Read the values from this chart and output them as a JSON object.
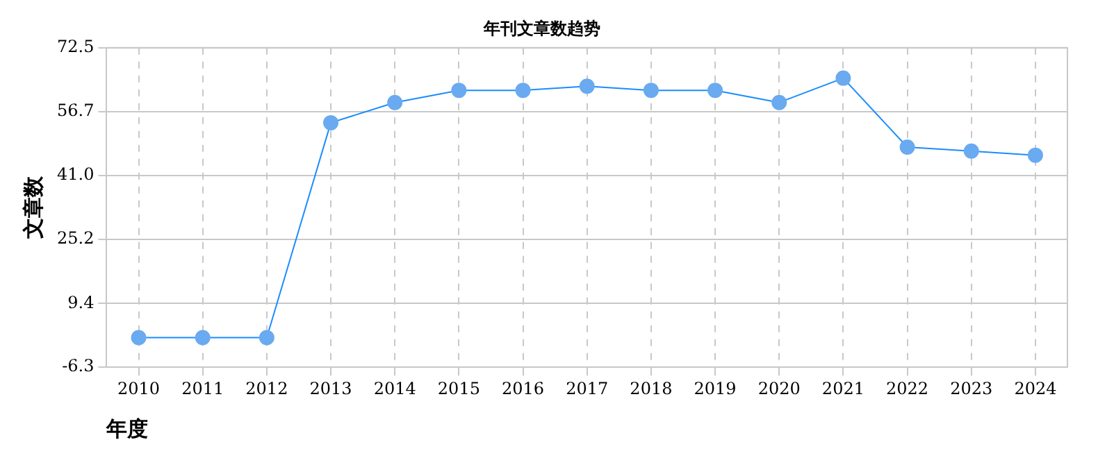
{
  "chart_data": {
    "type": "line",
    "title": "年刊文章数趋势",
    "xlabel": "年度",
    "ylabel": "文章数",
    "categories": [
      "2010",
      "2011",
      "2012",
      "2013",
      "2014",
      "2015",
      "2016",
      "2017",
      "2018",
      "2019",
      "2020",
      "2021",
      "2022",
      "2023",
      "2024"
    ],
    "series": [
      {
        "color": "#1a8cff",
        "values": [
          1,
          1,
          1,
          54,
          59,
          62,
          62,
          63,
          62,
          62,
          59,
          65,
          48,
          47,
          46
        ]
      }
    ],
    "ylim": [
      -6.3,
      72.5
    ],
    "yticks": [
      -6.3,
      9.4,
      25.2,
      {
        "value": 41,
        "label": "41.0"
      },
      56.7,
      72.5
    ],
    "grid": true,
    "marker": "circle",
    "line_style": "solid",
    "legend": false
  }
}
